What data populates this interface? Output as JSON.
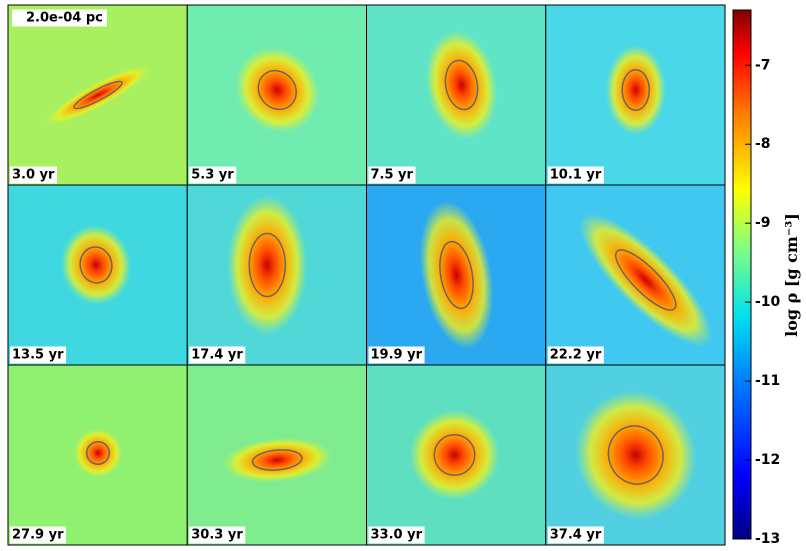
{
  "chart_data": {
    "type": "image-grid",
    "scale_label": "2.0e-04 pc",
    "panels": [
      {
        "label": "3.0 yr"
      },
      {
        "label": "5.3 yr"
      },
      {
        "label": "7.5 yr"
      },
      {
        "label": "10.1 yr"
      },
      {
        "label": "13.5 yr"
      },
      {
        "label": "17.4 yr"
      },
      {
        "label": "19.9 yr"
      },
      {
        "label": "22.2 yr"
      },
      {
        "label": "27.9 yr"
      },
      {
        "label": "30.3 yr"
      },
      {
        "label": "33.0 yr"
      },
      {
        "label": "37.4 yr"
      }
    ],
    "colorbar": {
      "label": "log ρ [g cm⁻³]",
      "lim": [
        -13,
        -6.3
      ],
      "ticks": [
        -7,
        -8,
        -9,
        -10,
        -11,
        -12,
        -13
      ]
    }
  }
}
